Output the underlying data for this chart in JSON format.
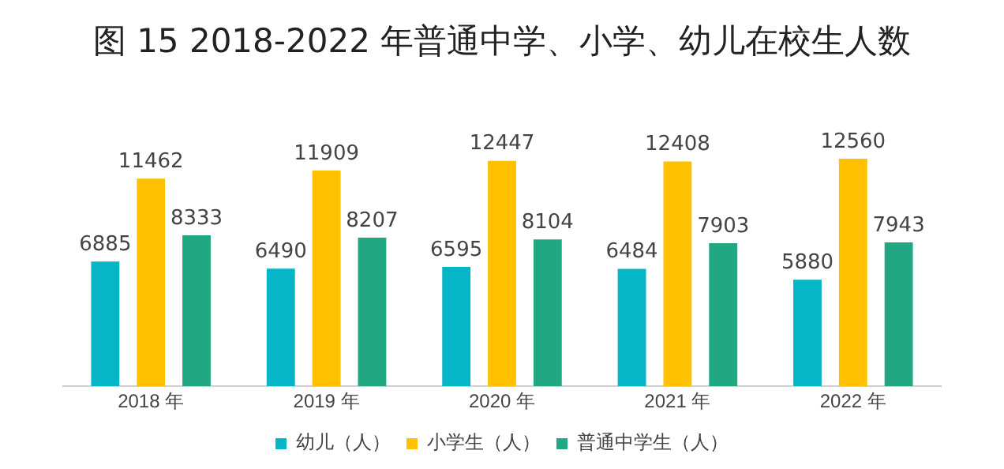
{
  "chart_data": {
    "type": "bar",
    "title": "图 15  2018-2022 年普通中学、小学、幼儿在校生人数",
    "categories": [
      "2018 年",
      "2019 年",
      "2020 年",
      "2021 年",
      "2022 年"
    ],
    "series": [
      {
        "name": "幼儿（人）",
        "color": "#06b6c6",
        "values": [
          6885,
          6490,
          6595,
          6484,
          5880
        ]
      },
      {
        "name": "小学生（人）",
        "color": "#ffc000",
        "values": [
          11462,
          11909,
          12447,
          12408,
          12560
        ]
      },
      {
        "name": "普通中学生（人）",
        "color": "#21a882",
        "values": [
          8333,
          8207,
          8104,
          7903,
          7943
        ]
      }
    ],
    "data_labels": true,
    "legend": "bottom",
    "grid": false
  }
}
